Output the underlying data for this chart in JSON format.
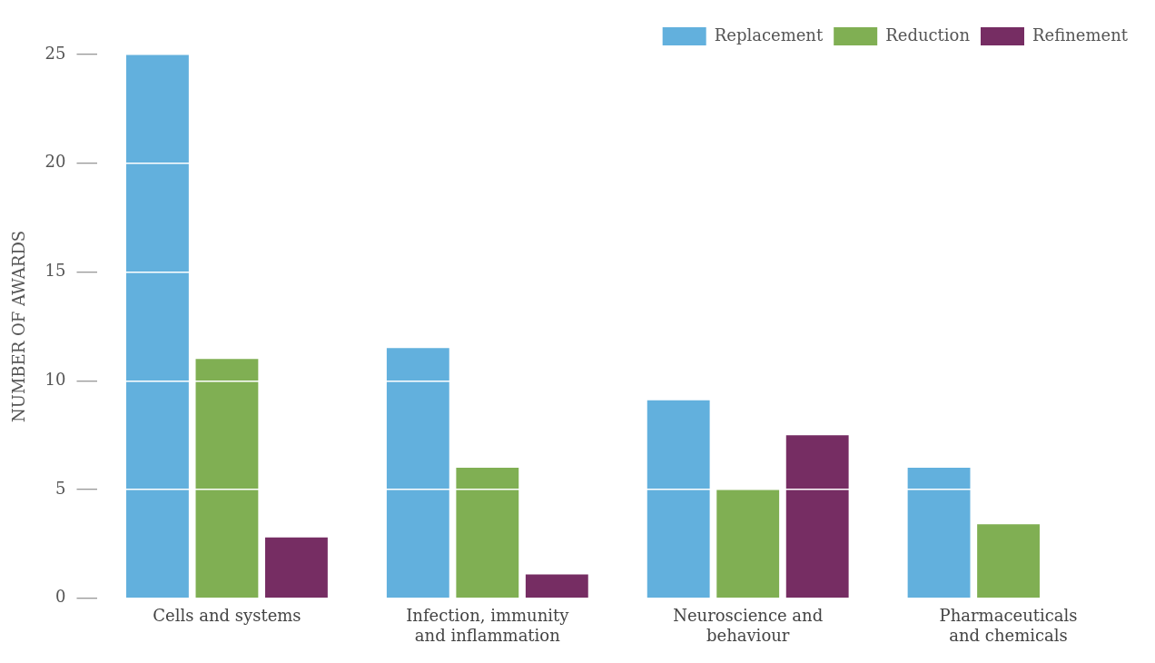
{
  "chart_data": {
    "type": "bar",
    "ylabel": "NUMBER OF AWARDS",
    "categories": [
      "Cells and systems",
      "Infection, immunity\nand inflammation",
      "Neuroscience and\nbehaviour",
      "Pharmaceuticals\nand chemicals"
    ],
    "series": [
      {
        "name": "Replacement",
        "color": "#62b0dd",
        "values": [
          25,
          11.5,
          9.1,
          6
        ]
      },
      {
        "name": "Reduction",
        "color": "#80af53",
        "values": [
          11,
          6,
          5,
          3.4
        ]
      },
      {
        "name": "Refinement",
        "color": "#762d63",
        "values": [
          2.8,
          1.1,
          7.5,
          null
        ]
      }
    ],
    "ylim": [
      0,
      25
    ],
    "yticks": [
      0,
      5,
      10,
      15,
      20,
      25
    ],
    "grid": "y",
    "legend": "top right"
  }
}
